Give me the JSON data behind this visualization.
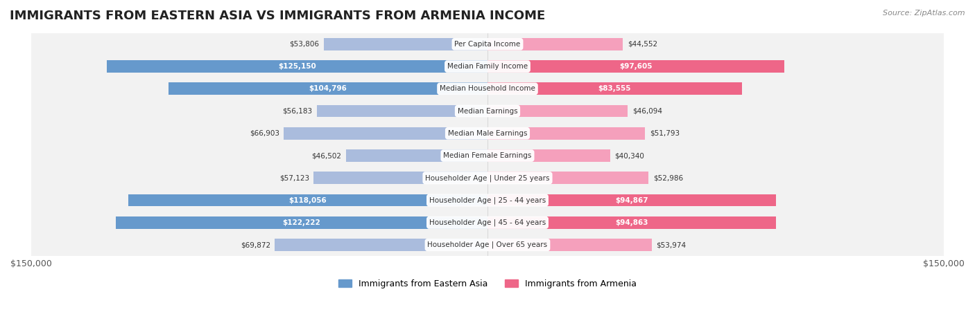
{
  "title": "IMMIGRANTS FROM EASTERN ASIA VS IMMIGRANTS FROM ARMENIA INCOME",
  "source": "Source: ZipAtlas.com",
  "categories": [
    "Per Capita Income",
    "Median Family Income",
    "Median Household Income",
    "Median Earnings",
    "Median Male Earnings",
    "Median Female Earnings",
    "Householder Age | Under 25 years",
    "Householder Age | 25 - 44 years",
    "Householder Age | 45 - 64 years",
    "Householder Age | Over 65 years"
  ],
  "eastern_asia_values": [
    53806,
    125150,
    104796,
    56183,
    66903,
    46502,
    57123,
    118056,
    122222,
    69872
  ],
  "armenia_values": [
    44552,
    97605,
    83555,
    46094,
    51793,
    40340,
    52986,
    94867,
    94863,
    53974
  ],
  "eastern_asia_labels": [
    "$53,806",
    "$125,150",
    "$104,796",
    "$56,183",
    "$66,903",
    "$46,502",
    "$57,123",
    "$118,056",
    "$122,222",
    "$69,872"
  ],
  "armenia_labels": [
    "$44,552",
    "$97,605",
    "$83,555",
    "$46,094",
    "$51,793",
    "$40,340",
    "$52,986",
    "$94,867",
    "$94,863",
    "$53,974"
  ],
  "max_value": 150000,
  "color_eastern_asia": "#88aadd",
  "color_armenia": "#f080a0",
  "color_eastern_asia_light": "#aabedd",
  "color_armenia_light": "#f0a0b8",
  "color_eastern_asia_legend": "#88aadd",
  "color_armenia_legend": "#f080a0",
  "bar_height": 0.55,
  "background_color": "#ffffff",
  "row_bg_light": "#f5f5f5",
  "row_bg_dark": "#ebebeb"
}
